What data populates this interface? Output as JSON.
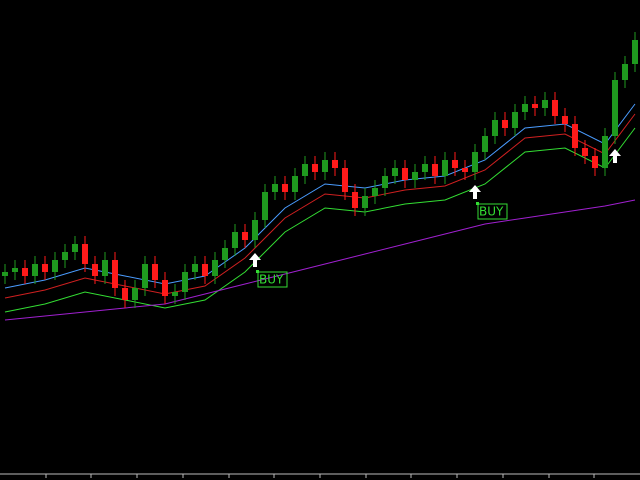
{
  "chart_data": {
    "type": "candlestick",
    "xlim": [
      -0.5,
      63.5
    ],
    "ylim": [
      0,
      118
    ],
    "up_color": "#1f9a1f",
    "down_color": "#ff1a1a",
    "open": [
      49,
      50,
      51,
      49,
      52,
      50,
      53,
      55,
      57,
      52,
      49,
      53,
      46,
      43,
      46,
      52,
      48,
      44,
      45,
      50,
      52,
      49,
      53,
      56,
      60,
      58,
      63,
      70,
      72,
      70,
      74,
      77,
      75,
      78,
      76,
      70,
      66,
      69,
      71,
      74,
      76,
      73,
      75,
      77,
      74,
      78,
      76,
      75,
      80,
      84,
      88,
      86,
      90,
      92,
      91,
      93,
      89,
      87,
      81,
      79,
      76,
      84,
      98,
      102
    ],
    "high": [
      52,
      53,
      53,
      54,
      54,
      55,
      57,
      59,
      59,
      54,
      55,
      55,
      48,
      48,
      54,
      54,
      50,
      47,
      52,
      54,
      54,
      55,
      58,
      62,
      62,
      65,
      72,
      74,
      74,
      76,
      79,
      79,
      80,
      80,
      78,
      72,
      71,
      73,
      76,
      78,
      78,
      77,
      79,
      79,
      80,
      80,
      78,
      82,
      86,
      90,
      90,
      92,
      94,
      94,
      95,
      95,
      91,
      89,
      83,
      81,
      86,
      100,
      104,
      110
    ],
    "low": [
      47,
      48,
      47,
      47,
      48,
      48,
      51,
      53,
      50,
      47,
      47,
      44,
      41,
      41,
      44,
      46,
      42,
      42,
      43,
      48,
      47,
      47,
      51,
      54,
      56,
      56,
      61,
      68,
      68,
      68,
      72,
      73,
      73,
      74,
      68,
      64,
      64,
      67,
      69,
      72,
      71,
      71,
      73,
      72,
      72,
      74,
      73,
      73,
      78,
      82,
      84,
      84,
      88,
      89,
      89,
      87,
      85,
      79,
      77,
      74,
      74,
      82,
      96,
      100
    ],
    "close": [
      50,
      51,
      49,
      52,
      50,
      53,
      55,
      57,
      52,
      49,
      53,
      46,
      43,
      46,
      52,
      48,
      44,
      45,
      50,
      52,
      49,
      53,
      56,
      60,
      58,
      63,
      70,
      72,
      70,
      74,
      77,
      75,
      78,
      76,
      70,
      66,
      69,
      71,
      74,
      76,
      73,
      75,
      77,
      74,
      78,
      76,
      75,
      80,
      84,
      88,
      86,
      90,
      92,
      91,
      93,
      89,
      87,
      81,
      79,
      76,
      84,
      98,
      102,
      108
    ],
    "lines": [
      {
        "color": "#4a9cff",
        "x": [
          0,
          4,
          8,
          12,
          16,
          20,
          24,
          28,
          32,
          36,
          40,
          44,
          48,
          52,
          56,
          60,
          63
        ],
        "values": [
          46,
          48,
          51,
          49,
          47,
          49,
          56,
          66,
          72,
          71,
          73,
          74,
          78,
          86,
          87,
          82,
          92
        ]
      },
      {
        "color": "#d02020",
        "x": [
          0,
          4,
          8,
          12,
          16,
          20,
          24,
          28,
          32,
          36,
          40,
          44,
          48,
          52,
          56,
          60,
          63
        ],
        "values": [
          43.5,
          45.5,
          48.5,
          46.5,
          44.5,
          46.5,
          53.5,
          63.5,
          69.5,
          68.5,
          70.5,
          71.5,
          75.5,
          83.5,
          84.5,
          79.5,
          89.5
        ]
      },
      {
        "color": "#33dd33",
        "x": [
          0,
          4,
          8,
          12,
          16,
          20,
          24,
          28,
          32,
          36,
          40,
          44,
          48,
          52,
          56,
          60,
          63
        ],
        "values": [
          40,
          42,
          45,
          43,
          41,
          43,
          50,
          60,
          66,
          65,
          67,
          68,
          72,
          80,
          81,
          76,
          86
        ]
      },
      {
        "color": "#a020d0",
        "x": [
          0,
          4,
          8,
          12,
          16,
          20,
          24,
          28,
          32,
          36,
          40,
          44,
          48,
          52,
          56,
          60,
          63
        ],
        "values": [
          38,
          39,
          40,
          41,
          42,
          44.5,
          47,
          49.5,
          52,
          54.5,
          57,
          59.5,
          62,
          63.5,
          65,
          66.5,
          68
        ]
      }
    ],
    "signals": [
      {
        "index": 25,
        "price": 53,
        "label": "BUY"
      },
      {
        "index": 47,
        "price": 70,
        "label": "BUY"
      },
      {
        "index": 61,
        "price": 79
      }
    ]
  }
}
